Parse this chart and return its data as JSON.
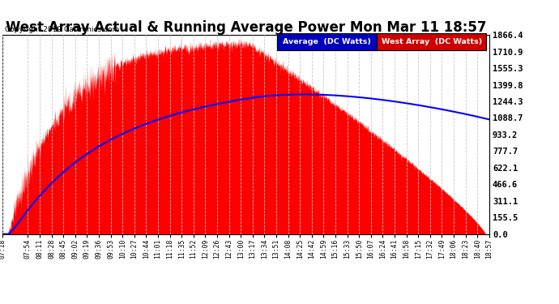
{
  "title": "West Array Actual & Running Average Power Mon Mar 11 18:57",
  "copyright": "Copyright 2019 Cartronics.com",
  "ylabel_right": [
    "0.0",
    "155.5",
    "311.1",
    "466.6",
    "622.1",
    "777.7",
    "933.2",
    "1088.7",
    "1244.3",
    "1399.8",
    "1555.3",
    "1710.9",
    "1866.4"
  ],
  "ymax": 1866.4,
  "ymin": 0.0,
  "yticks": [
    0.0,
    155.5,
    311.1,
    466.6,
    622.1,
    777.7,
    933.2,
    1088.7,
    1244.3,
    1399.8,
    1555.3,
    1710.9,
    1866.4
  ],
  "xtick_labels": [
    "07:18",
    "07:54",
    "08:11",
    "08:28",
    "08:45",
    "09:02",
    "09:19",
    "09:36",
    "09:53",
    "10:10",
    "10:27",
    "10:44",
    "11:01",
    "11:18",
    "11:35",
    "11:52",
    "12:09",
    "12:26",
    "12:43",
    "13:00",
    "13:17",
    "13:34",
    "13:51",
    "14:08",
    "14:25",
    "14:42",
    "14:59",
    "15:16",
    "15:33",
    "15:50",
    "16:07",
    "16:24",
    "16:41",
    "16:58",
    "17:15",
    "17:32",
    "17:49",
    "18:06",
    "18:23",
    "18:40",
    "18:57"
  ],
  "background_color": "#ffffff",
  "plot_bg_color": "#ffffff",
  "grid_color": "#c8c8c8",
  "red_fill_color": "#ff0000",
  "blue_line_color": "#0000ff",
  "title_fontsize": 12,
  "legend_avg_bg": "#0000bb",
  "legend_west_bg": "#cc0000",
  "legend_avg_text": "Average  (DC Watts)",
  "legend_west_text": "West Array  (DC Watts)"
}
